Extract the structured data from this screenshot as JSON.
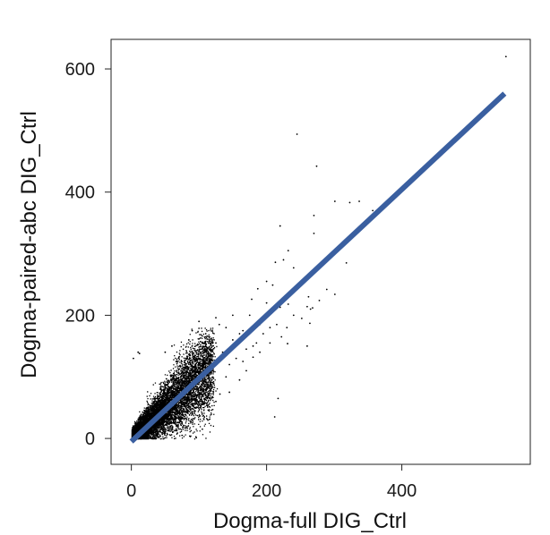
{
  "chart_data": {
    "type": "scatter",
    "title": "",
    "xlabel": "Dogma-full DIG_Ctrl",
    "ylabel": "Dogma-paired-abc DIG_Ctrl",
    "xlim": [
      -30,
      590
    ],
    "ylim": [
      -42,
      648
    ],
    "xticks": [
      0,
      200,
      400
    ],
    "yticks": [
      0,
      200,
      400,
      600
    ],
    "xtick_labels": [
      "0",
      "200",
      "400"
    ],
    "ytick_labels": [
      "0",
      "200",
      "400",
      "600"
    ],
    "grid": false,
    "legend": "none",
    "colors": {
      "points": "#000000",
      "fit_line": "#3a5fa0",
      "frame": "#222222"
    },
    "fit_line": {
      "x": [
        0,
        552
      ],
      "y": [
        -5,
        560
      ]
    },
    "dense_cloud": {
      "description_free_count": 14000,
      "x_range": [
        0,
        120
      ],
      "y_range": [
        0,
        160
      ],
      "trend_slope": 1.0
    },
    "points": [
      [
        554,
        620
      ],
      [
        245,
        494
      ],
      [
        274,
        442
      ],
      [
        323,
        383
      ],
      [
        301,
        385
      ],
      [
        270,
        362
      ],
      [
        270,
        333
      ],
      [
        220,
        345
      ],
      [
        357,
        370
      ],
      [
        337,
        385
      ],
      [
        240,
        277
      ],
      [
        232,
        305
      ],
      [
        213,
        286
      ],
      [
        225,
        290
      ],
      [
        289,
        242
      ],
      [
        301,
        234
      ],
      [
        318,
        285
      ],
      [
        262,
        230
      ],
      [
        187,
        243
      ],
      [
        200,
        255
      ],
      [
        209,
        249
      ],
      [
        260,
        214
      ],
      [
        265,
        210
      ],
      [
        268,
        212
      ],
      [
        220,
        213
      ],
      [
        232,
        218
      ],
      [
        252,
        195
      ],
      [
        264,
        187
      ],
      [
        278,
        224
      ],
      [
        260,
        150
      ],
      [
        217,
        65
      ],
      [
        212,
        35
      ],
      [
        231,
        154
      ],
      [
        131,
        72
      ],
      [
        117,
        86
      ],
      [
        105,
        15
      ],
      [
        90,
        30
      ],
      [
        75,
        5
      ],
      [
        10,
        140
      ],
      [
        12,
        138
      ],
      [
        3,
        130
      ],
      [
        160,
        170
      ],
      [
        165,
        175
      ],
      [
        150,
        160
      ],
      [
        190,
        185
      ],
      [
        175,
        200
      ],
      [
        140,
        180
      ],
      [
        130,
        185
      ],
      [
        125,
        196
      ],
      [
        110,
        170
      ],
      [
        100,
        190
      ],
      [
        155,
        130
      ],
      [
        170,
        145
      ],
      [
        180,
        150
      ],
      [
        145,
        120
      ],
      [
        120,
        110
      ],
      [
        135,
        140
      ],
      [
        165,
        125
      ],
      [
        195,
        170
      ],
      [
        205,
        180
      ],
      [
        215,
        185
      ],
      [
        185,
        155
      ],
      [
        200,
        220
      ],
      [
        178,
        226
      ],
      [
        150,
        200
      ],
      [
        230,
        180
      ],
      [
        240,
        200
      ],
      [
        140,
        100
      ],
      [
        160,
        95
      ],
      [
        125,
        60
      ],
      [
        145,
        75
      ],
      [
        170,
        110
      ],
      [
        90,
        175
      ],
      [
        85,
        160
      ],
      [
        60,
        150
      ],
      [
        50,
        140
      ],
      [
        70,
        130
      ],
      [
        100,
        130
      ],
      [
        115,
        145
      ],
      [
        125,
        155
      ],
      [
        95,
        105
      ],
      [
        180,
        132
      ],
      [
        190,
        140
      ],
      [
        205,
        155
      ],
      [
        222,
        165
      ]
    ]
  }
}
